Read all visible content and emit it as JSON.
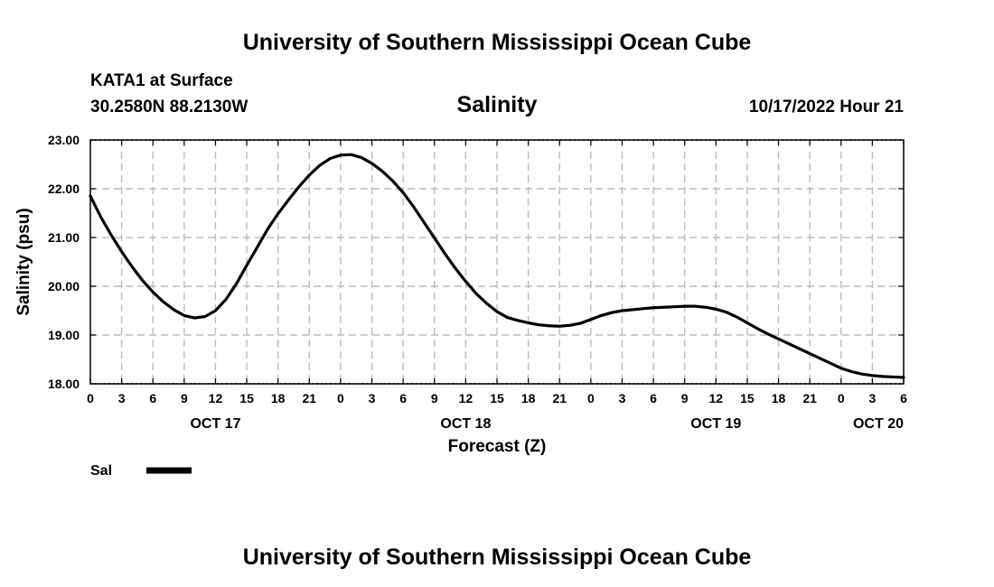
{
  "header": {
    "title_top": "University of Southern Mississippi Ocean Cube",
    "station": "KATA1 at Surface",
    "coordinates": "30.2580N  88.2130W",
    "variable": "Salinity",
    "issued": "10/17/2022 Hour 21"
  },
  "footer": {
    "title_bottom": "University of Southern Mississippi Ocean Cube"
  },
  "chart_data": {
    "type": "line",
    "title": "Salinity",
    "xlabel": "Forecast (Z)",
    "ylabel": "Salinity (psu)",
    "xlim": [
      0,
      78
    ],
    "ylim": [
      18.0,
      23.0
    ],
    "x_ticks": [
      0,
      3,
      6,
      9,
      12,
      15,
      18,
      21,
      24,
      27,
      30,
      33,
      36,
      39,
      42,
      45,
      48,
      51,
      54,
      57,
      60,
      63,
      66,
      69,
      72,
      75,
      78
    ],
    "x_tick_labels": [
      "0",
      "3",
      "6",
      "9",
      "12",
      "15",
      "18",
      "21",
      "0",
      "3",
      "6",
      "9",
      "12",
      "15",
      "18",
      "21",
      "0",
      "3",
      "6",
      "9",
      "12",
      "15",
      "18",
      "21",
      "0",
      "3",
      "6"
    ],
    "day_labels": [
      {
        "x": 12,
        "label": "OCT 17"
      },
      {
        "x": 36,
        "label": "OCT 18"
      },
      {
        "x": 60,
        "label": "OCT 19"
      },
      {
        "x": 78,
        "label": "OCT 20"
      }
    ],
    "y_ticks": [
      18.0,
      19.0,
      20.0,
      21.0,
      22.0,
      23.0
    ],
    "y_tick_labels": [
      "18.00",
      "19.00",
      "20.00",
      "21.00",
      "22.00",
      "23.00"
    ],
    "grid": true,
    "legend": [
      {
        "name": "Sal",
        "color": "#000000"
      }
    ],
    "legend_position": "bottom-left",
    "series": [
      {
        "name": "Sal",
        "color": "#000000",
        "x": [
          0,
          1,
          2,
          3,
          4,
          5,
          6,
          7,
          8,
          9,
          10,
          11,
          12,
          13,
          14,
          15,
          16,
          17,
          18,
          19,
          20,
          21,
          22,
          23,
          24,
          25,
          26,
          27,
          28,
          29,
          30,
          31,
          32,
          33,
          34,
          35,
          36,
          37,
          38,
          39,
          40,
          41,
          42,
          43,
          44,
          45,
          46,
          47,
          48,
          49,
          50,
          51,
          52,
          53,
          54,
          55,
          56,
          57,
          58,
          59,
          60,
          61,
          62,
          63,
          64,
          65,
          66,
          67,
          68,
          69,
          70,
          71,
          72,
          73,
          74,
          75,
          76,
          77,
          78
        ],
        "values": [
          21.85,
          21.42,
          21.05,
          20.71,
          20.4,
          20.12,
          19.88,
          19.68,
          19.52,
          19.4,
          19.35,
          19.38,
          19.5,
          19.73,
          20.05,
          20.43,
          20.8,
          21.17,
          21.49,
          21.77,
          22.04,
          22.28,
          22.48,
          22.62,
          22.69,
          22.7,
          22.64,
          22.52,
          22.36,
          22.16,
          21.92,
          21.63,
          21.31,
          20.99,
          20.67,
          20.37,
          20.1,
          19.85,
          19.65,
          19.48,
          19.36,
          19.3,
          19.25,
          19.21,
          19.19,
          19.18,
          19.2,
          19.24,
          19.32,
          19.4,
          19.46,
          19.5,
          19.52,
          19.54,
          19.56,
          19.57,
          19.58,
          19.59,
          19.59,
          19.57,
          19.53,
          19.47,
          19.37,
          19.25,
          19.13,
          19.02,
          18.92,
          18.82,
          18.72,
          18.62,
          18.52,
          18.42,
          18.32,
          18.25,
          18.2,
          18.17,
          18.15,
          18.14,
          18.13
        ]
      }
    ]
  }
}
